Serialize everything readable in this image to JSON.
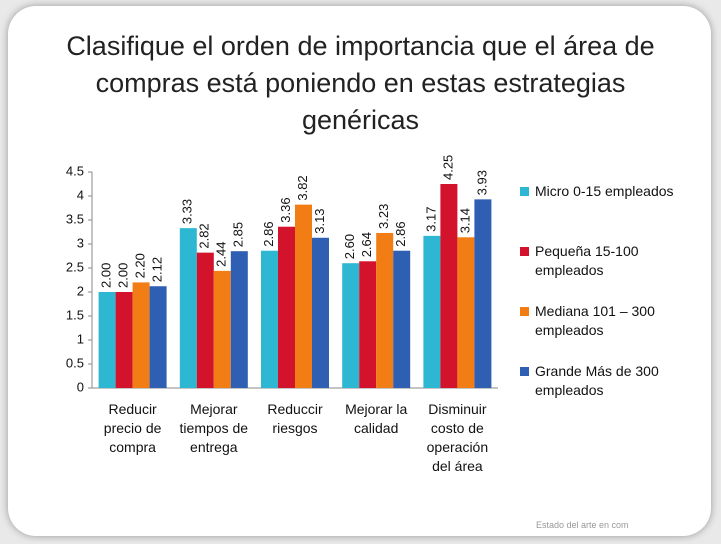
{
  "chart_data": {
    "type": "bar",
    "title": "Clasifique el orden de importancia que el área de compras está poniendo en estas estrategias genéricas",
    "categories": [
      "Reducir precio de compra",
      "Mejorar tiempos de entrega",
      "Reduccir riesgos",
      "Mejorar la calidad",
      "Disminuir costo de operación del área"
    ],
    "series": [
      {
        "name": "Micro 0-15 empleados",
        "color": "#2db7d2",
        "values": [
          2.0,
          3.33,
          2.86,
          2.6,
          3.17
        ],
        "value_labels": [
          "2.00",
          "3.33",
          "2.86",
          "2.60",
          "3.17"
        ]
      },
      {
        "name": "Pequeña 15-100 empleados",
        "color": "#d3132c",
        "values": [
          2.0,
          2.82,
          3.36,
          2.64,
          4.25
        ],
        "value_labels": [
          "2.00",
          "2.82",
          "3.36",
          "2.64",
          "4.25"
        ]
      },
      {
        "name": "Mediana 101 – 300 empleados",
        "color": "#f27d14",
        "values": [
          2.2,
          2.44,
          3.82,
          3.23,
          3.14
        ],
        "value_labels": [
          "2.20",
          "2.44",
          "3.82",
          "3.23",
          "3.14"
        ]
      },
      {
        "name": "Grande Más de 300 empleados",
        "color": "#2f5fb3",
        "values": [
          2.12,
          2.85,
          3.13,
          2.86,
          3.93
        ],
        "value_labels": [
          "2.12",
          "2.85",
          "3.13",
          "2.86",
          "3.93"
        ]
      }
    ],
    "ylim": [
      0,
      4.5
    ],
    "yticks": [
      0,
      0.5,
      1,
      1.5,
      2,
      2.5,
      3,
      3.5,
      4,
      4.5
    ],
    "legend": "right",
    "footer": "Estado del arte en com"
  }
}
